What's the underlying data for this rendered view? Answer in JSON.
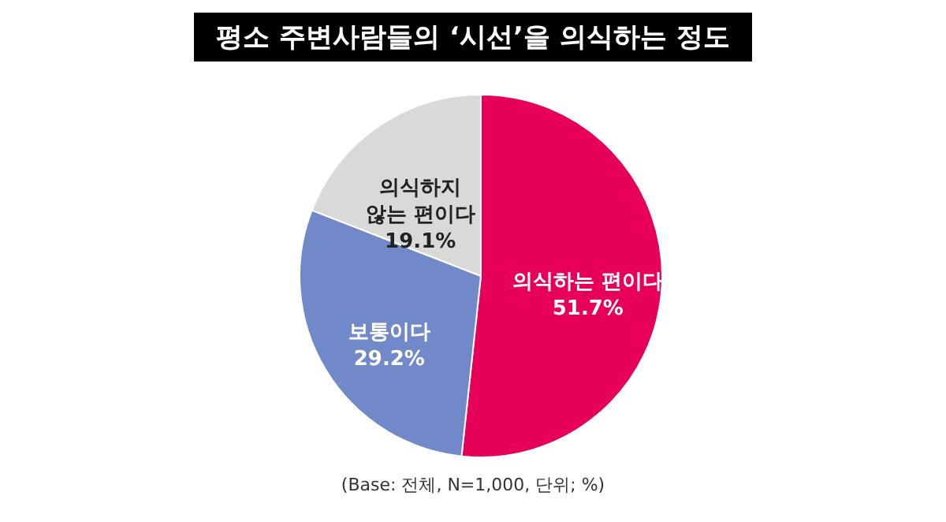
{
  "chart_data": {
    "type": "pie",
    "title": "평소 주변사람들의 ‘시선’을 의식하는 정도",
    "categories": [
      "의식하는 편이다",
      "보통이다",
      "의식하지\n않는 편이다"
    ],
    "values": [
      51.7,
      29.2,
      19.1
    ],
    "value_labels": [
      "51.7%",
      "29.2%",
      "19.1%"
    ],
    "colors": [
      "#e6005a",
      "#7189c8",
      "#d9d9d9"
    ],
    "legend": false,
    "annotations": [
      "(Base: 전체, N=1,000, 단위; %)"
    ]
  }
}
